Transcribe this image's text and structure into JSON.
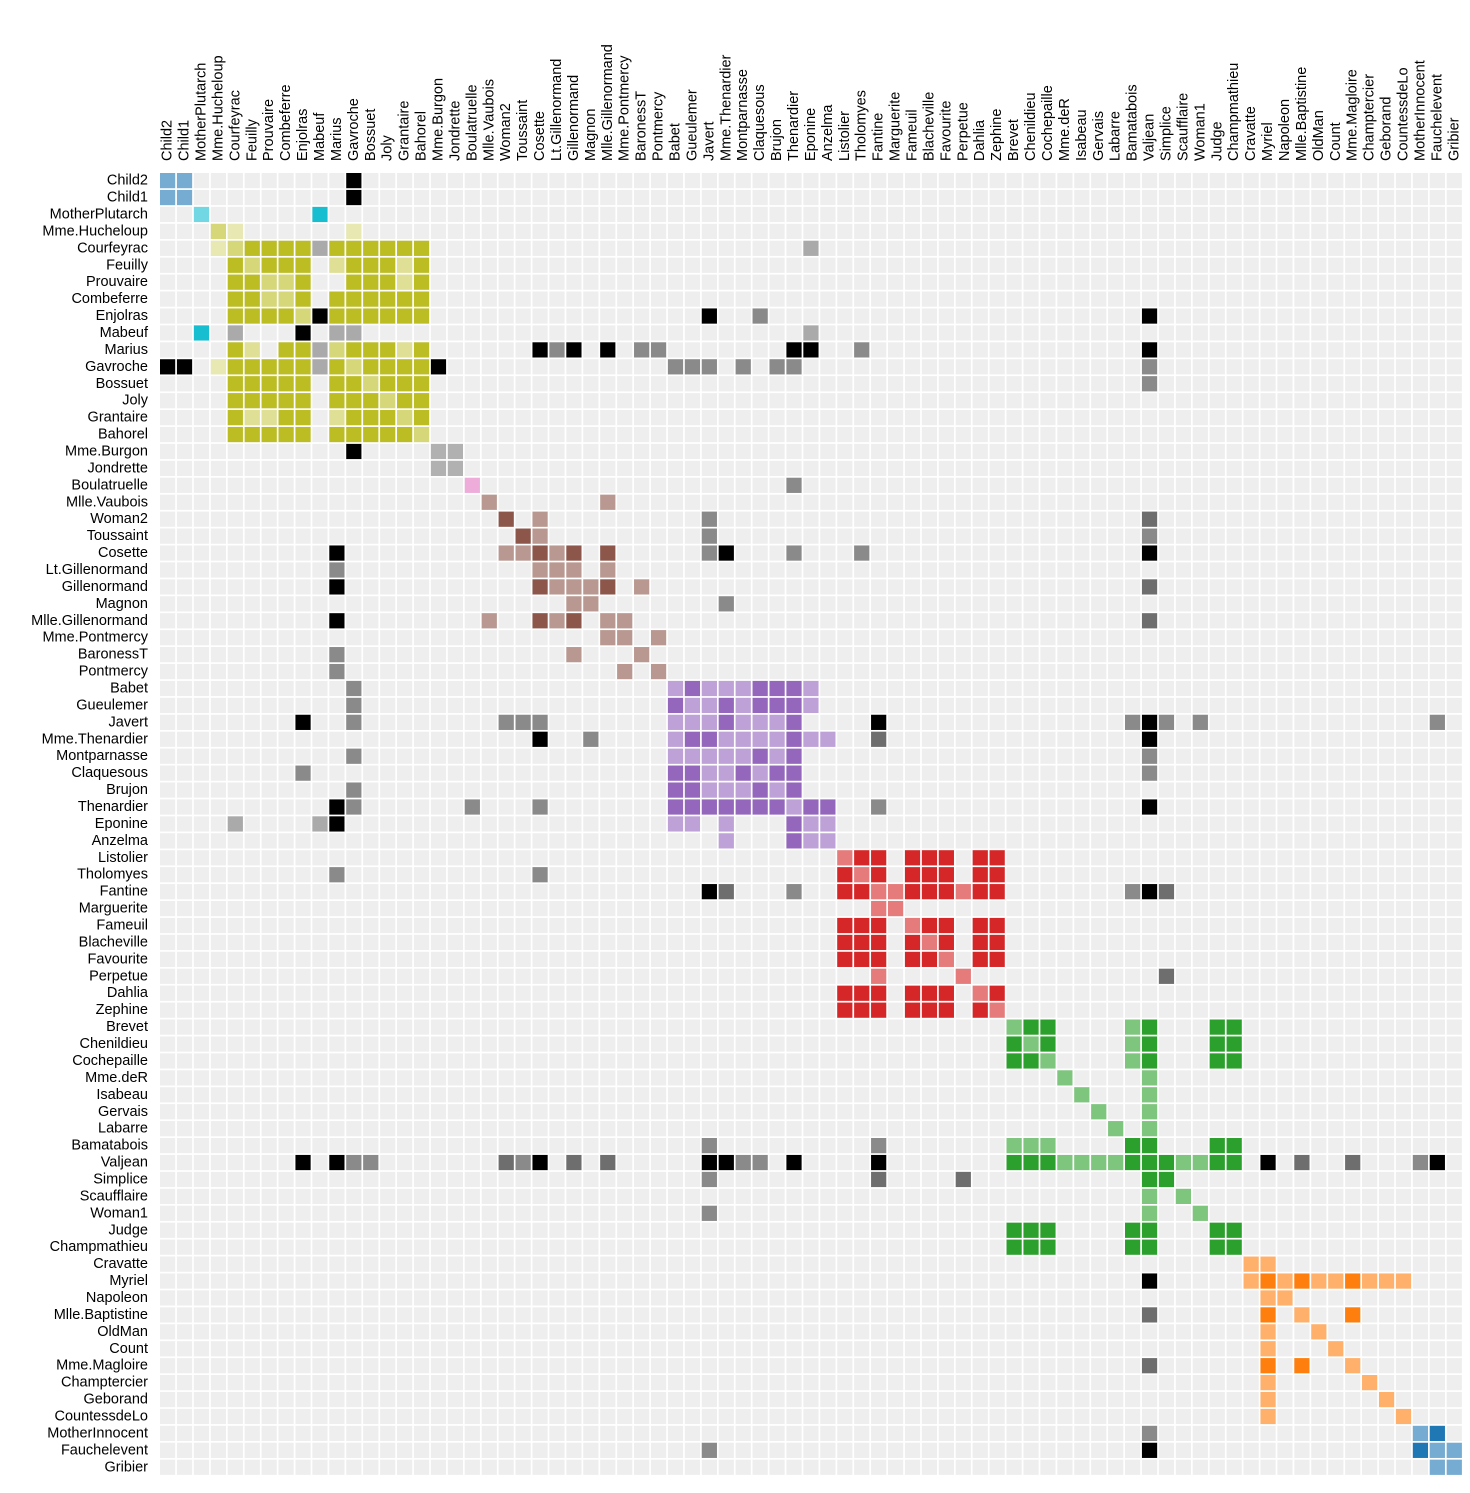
{
  "chart_data": {
    "type": "heatmap",
    "title": "",
    "xlabel": "",
    "ylabel": "",
    "labels": [
      "Child2",
      "Child1",
      "MotherPlutarch",
      "Mme.Hucheloup",
      "Courfeyrac",
      "Feuilly",
      "Prouvaire",
      "Combeferre",
      "Enjolras",
      "Mabeuf",
      "Marius",
      "Gavroche",
      "Bossuet",
      "Joly",
      "Grantaire",
      "Bahorel",
      "Mme.Burgon",
      "Jondrette",
      "Boulatruelle",
      "Mlle.Vaubois",
      "Woman2",
      "Toussaint",
      "Cosette",
      "Lt.Gillenormand",
      "Gillenormand",
      "Magnon",
      "Mlle.Gillenormand",
      "Mme.Pontmercy",
      "BaronessT",
      "Pontmercy",
      "Babet",
      "Gueulemer",
      "Javert",
      "Mme.Thenardier",
      "Montparnasse",
      "Claquesous",
      "Brujon",
      "Thenardier",
      "Eponine",
      "Anzelma",
      "Listolier",
      "Tholomyes",
      "Fantine",
      "Marguerite",
      "Fameuil",
      "Blacheville",
      "Favourite",
      "Perpetue",
      "Dahlia",
      "Zephine",
      "Brevet",
      "Chenildieu",
      "Cochepaille",
      "Mme.deR",
      "Isabeau",
      "Gervais",
      "Labarre",
      "Bamatabois",
      "Valjean",
      "Simplice",
      "Scaufflaire",
      "Woman1",
      "Judge",
      "Champmathieu",
      "Cravatte",
      "Myriel",
      "Napoleon",
      "Mlle.Baptistine",
      "OldMan",
      "Count",
      "Mme.Magloire",
      "Champtercier",
      "Geborand",
      "CountessdeLo",
      "MotherInnocent",
      "Fauchelevent",
      "Gribier"
    ],
    "groups": [
      0,
      0,
      1,
      2,
      2,
      2,
      2,
      2,
      2,
      1,
      2,
      2,
      2,
      2,
      2,
      2,
      3,
      3,
      4,
      5,
      5,
      5,
      5,
      5,
      5,
      5,
      5,
      5,
      5,
      5,
      6,
      6,
      6,
      6,
      6,
      6,
      6,
      6,
      6,
      6,
      7,
      7,
      7,
      7,
      7,
      7,
      7,
      7,
      7,
      7,
      8,
      8,
      8,
      8,
      8,
      8,
      8,
      8,
      8,
      8,
      8,
      8,
      8,
      8,
      9,
      9,
      9,
      9,
      9,
      9,
      9,
      9,
      9,
      9,
      0,
      0,
      0
    ],
    "group_colors": [
      "#1f77b4",
      "#17becf",
      "#bcbd22",
      "#7f7f7f",
      "#e377c2",
      "#8c564b",
      "#9467bd",
      "#d62728",
      "#2ca02c",
      "#ff7f0e"
    ],
    "cross_group_colors": [
      "#c7c7c7",
      "#aaaaaa",
      "#8a8a8a",
      "#6e6e6e",
      "#444444",
      "#000000"
    ],
    "cell_background": "#eeeeee",
    "links": [
      [
        0,
        1,
        3
      ],
      [
        0,
        0,
        3
      ],
      [
        0,
        11,
        6
      ],
      [
        1,
        1,
        3
      ],
      [
        1,
        11,
        6
      ],
      [
        2,
        2,
        3
      ],
      [
        2,
        9,
        9
      ],
      [
        3,
        3,
        3
      ],
      [
        3,
        4,
        1
      ],
      [
        3,
        11,
        1
      ],
      [
        4,
        4,
        3
      ],
      [
        4,
        5,
        6
      ],
      [
        4,
        6,
        6
      ],
      [
        4,
        7,
        6
      ],
      [
        4,
        8,
        6
      ],
      [
        4,
        10,
        6
      ],
      [
        4,
        11,
        6
      ],
      [
        4,
        12,
        6
      ],
      [
        4,
        13,
        6
      ],
      [
        4,
        14,
        6
      ],
      [
        4,
        15,
        6
      ],
      [
        4,
        9,
        2
      ],
      [
        4,
        38,
        2
      ],
      [
        5,
        5,
        3
      ],
      [
        5,
        6,
        6
      ],
      [
        5,
        7,
        6
      ],
      [
        5,
        8,
        6
      ],
      [
        5,
        10,
        2
      ],
      [
        5,
        11,
        6
      ],
      [
        5,
        12,
        6
      ],
      [
        5,
        13,
        6
      ],
      [
        5,
        14,
        2
      ],
      [
        5,
        15,
        6
      ],
      [
        6,
        6,
        3
      ],
      [
        6,
        7,
        3
      ],
      [
        6,
        8,
        6
      ],
      [
        6,
        11,
        6
      ],
      [
        6,
        12,
        6
      ],
      [
        6,
        13,
        6
      ],
      [
        6,
        14,
        2
      ],
      [
        6,
        15,
        6
      ],
      [
        7,
        7,
        3
      ],
      [
        7,
        8,
        6
      ],
      [
        7,
        10,
        6
      ],
      [
        7,
        11,
        6
      ],
      [
        7,
        12,
        6
      ],
      [
        7,
        13,
        6
      ],
      [
        7,
        14,
        6
      ],
      [
        7,
        15,
        6
      ],
      [
        8,
        8,
        3
      ],
      [
        8,
        9,
        6
      ],
      [
        8,
        10,
        6
      ],
      [
        8,
        11,
        6
      ],
      [
        8,
        12,
        6
      ],
      [
        8,
        13,
        6
      ],
      [
        8,
        14,
        6
      ],
      [
        8,
        15,
        6
      ],
      [
        8,
        32,
        9
      ],
      [
        8,
        35,
        3
      ],
      [
        8,
        58,
        9
      ],
      [
        9,
        10,
        2
      ],
      [
        9,
        11,
        2
      ],
      [
        9,
        38,
        2
      ],
      [
        10,
        10,
        3
      ],
      [
        10,
        11,
        6
      ],
      [
        10,
        12,
        6
      ],
      [
        10,
        13,
        6
      ],
      [
        10,
        14,
        2
      ],
      [
        10,
        15,
        6
      ],
      [
        10,
        22,
        9
      ],
      [
        10,
        23,
        3
      ],
      [
        10,
        24,
        9
      ],
      [
        10,
        26,
        9
      ],
      [
        10,
        28,
        3
      ],
      [
        10,
        29,
        3
      ],
      [
        10,
        37,
        6
      ],
      [
        10,
        38,
        9
      ],
      [
        10,
        41,
        3
      ],
      [
        10,
        58,
        9
      ],
      [
        11,
        11,
        3
      ],
      [
        11,
        12,
        6
      ],
      [
        11,
        13,
        6
      ],
      [
        11,
        14,
        6
      ],
      [
        11,
        15,
        6
      ],
      [
        11,
        16,
        6
      ],
      [
        11,
        30,
        3
      ],
      [
        11,
        31,
        3
      ],
      [
        11,
        32,
        3
      ],
      [
        11,
        34,
        3
      ],
      [
        11,
        36,
        3
      ],
      [
        11,
        37,
        3
      ],
      [
        11,
        58,
        3
      ],
      [
        12,
        12,
        3
      ],
      [
        12,
        13,
        6
      ],
      [
        12,
        14,
        6
      ],
      [
        12,
        15,
        6
      ],
      [
        12,
        58,
        3
      ],
      [
        13,
        13,
        3
      ],
      [
        13,
        14,
        6
      ],
      [
        13,
        15,
        6
      ],
      [
        14,
        14,
        3
      ],
      [
        14,
        15,
        6
      ],
      [
        15,
        15,
        3
      ],
      [
        16,
        16,
        3
      ],
      [
        16,
        17,
        3
      ],
      [
        17,
        17,
        3
      ],
      [
        18,
        18,
        3
      ],
      [
        18,
        37,
        3
      ],
      [
        19,
        19,
        3
      ],
      [
        19,
        26,
        3
      ],
      [
        20,
        20,
        6
      ],
      [
        20,
        22,
        3
      ],
      [
        20,
        32,
        3
      ],
      [
        20,
        58,
        4
      ],
      [
        21,
        21,
        6
      ],
      [
        21,
        22,
        3
      ],
      [
        21,
        32,
        3
      ],
      [
        21,
        58,
        3
      ],
      [
        22,
        22,
        6
      ],
      [
        22,
        23,
        3
      ],
      [
        22,
        24,
        6
      ],
      [
        22,
        26,
        6
      ],
      [
        22,
        32,
        3
      ],
      [
        22,
        33,
        9
      ],
      [
        22,
        37,
        3
      ],
      [
        22,
        41,
        3
      ],
      [
        22,
        58,
        9
      ],
      [
        23,
        23,
        3
      ],
      [
        23,
        24,
        3
      ],
      [
        23,
        26,
        3
      ],
      [
        24,
        24,
        3
      ],
      [
        24,
        25,
        3
      ],
      [
        24,
        26,
        6
      ],
      [
        24,
        28,
        3
      ],
      [
        24,
        58,
        4
      ],
      [
        25,
        25,
        3
      ],
      [
        25,
        33,
        3
      ],
      [
        26,
        26,
        3
      ],
      [
        26,
        27,
        3
      ],
      [
        26,
        58,
        4
      ],
      [
        27,
        27,
        3
      ],
      [
        27,
        29,
        3
      ],
      [
        28,
        28,
        3
      ],
      [
        29,
        29,
        3
      ],
      [
        30,
        30,
        3
      ],
      [
        30,
        31,
        6
      ],
      [
        30,
        32,
        3
      ],
      [
        30,
        33,
        3
      ],
      [
        30,
        34,
        3
      ],
      [
        30,
        35,
        6
      ],
      [
        30,
        36,
        6
      ],
      [
        30,
        37,
        6
      ],
      [
        30,
        38,
        3
      ],
      [
        31,
        31,
        3
      ],
      [
        31,
        32,
        3
      ],
      [
        31,
        33,
        6
      ],
      [
        31,
        34,
        3
      ],
      [
        31,
        35,
        6
      ],
      [
        31,
        36,
        6
      ],
      [
        31,
        37,
        6
      ],
      [
        31,
        38,
        3
      ],
      [
        32,
        32,
        3
      ],
      [
        32,
        33,
        6
      ],
      [
        32,
        34,
        3
      ],
      [
        32,
        35,
        3
      ],
      [
        32,
        36,
        3
      ],
      [
        32,
        37,
        6
      ],
      [
        32,
        42,
        9
      ],
      [
        32,
        57,
        3
      ],
      [
        32,
        58,
        9
      ],
      [
        32,
        59,
        3
      ],
      [
        32,
        61,
        3
      ],
      [
        32,
        75,
        3
      ],
      [
        33,
        33,
        3
      ],
      [
        33,
        34,
        3
      ],
      [
        33,
        35,
        3
      ],
      [
        33,
        36,
        3
      ],
      [
        33,
        37,
        6
      ],
      [
        33,
        38,
        3
      ],
      [
        33,
        39,
        3
      ],
      [
        33,
        42,
        4
      ],
      [
        33,
        58,
        9
      ],
      [
        34,
        34,
        3
      ],
      [
        34,
        35,
        6
      ],
      [
        34,
        36,
        3
      ],
      [
        34,
        37,
        6
      ],
      [
        34,
        58,
        3
      ],
      [
        35,
        35,
        3
      ],
      [
        35,
        36,
        6
      ],
      [
        35,
        37,
        6
      ],
      [
        35,
        58,
        3
      ],
      [
        36,
        36,
        3
      ],
      [
        36,
        37,
        6
      ],
      [
        37,
        37,
        3
      ],
      [
        37,
        38,
        6
      ],
      [
        37,
        39,
        6
      ],
      [
        37,
        42,
        3
      ],
      [
        37,
        58,
        9
      ],
      [
        38,
        38,
        3
      ],
      [
        38,
        39,
        3
      ],
      [
        39,
        39,
        3
      ],
      [
        40,
        40,
        3
      ],
      [
        40,
        41,
        6
      ],
      [
        40,
        42,
        6
      ],
      [
        40,
        44,
        6
      ],
      [
        40,
        45,
        6
      ],
      [
        40,
        46,
        6
      ],
      [
        40,
        48,
        6
      ],
      [
        40,
        49,
        6
      ],
      [
        41,
        41,
        3
      ],
      [
        41,
        42,
        6
      ],
      [
        41,
        44,
        6
      ],
      [
        41,
        45,
        6
      ],
      [
        41,
        46,
        6
      ],
      [
        41,
        48,
        6
      ],
      [
        41,
        49,
        6
      ],
      [
        42,
        42,
        3
      ],
      [
        42,
        43,
        3
      ],
      [
        42,
        44,
        6
      ],
      [
        42,
        45,
        6
      ],
      [
        42,
        46,
        6
      ],
      [
        42,
        47,
        3
      ],
      [
        42,
        48,
        6
      ],
      [
        42,
        49,
        6
      ],
      [
        42,
        57,
        3
      ],
      [
        42,
        58,
        9
      ],
      [
        42,
        59,
        4
      ],
      [
        43,
        43,
        3
      ],
      [
        44,
        44,
        3
      ],
      [
        44,
        45,
        6
      ],
      [
        44,
        46,
        6
      ],
      [
        44,
        48,
        6
      ],
      [
        44,
        49,
        6
      ],
      [
        45,
        45,
        3
      ],
      [
        45,
        46,
        6
      ],
      [
        45,
        48,
        6
      ],
      [
        45,
        49,
        6
      ],
      [
        46,
        46,
        3
      ],
      [
        46,
        48,
        6
      ],
      [
        46,
        49,
        6
      ],
      [
        47,
        47,
        3
      ],
      [
        47,
        59,
        4
      ],
      [
        48,
        48,
        3
      ],
      [
        48,
        49,
        6
      ],
      [
        49,
        49,
        3
      ],
      [
        50,
        50,
        3
      ],
      [
        50,
        51,
        6
      ],
      [
        50,
        52,
        6
      ],
      [
        50,
        57,
        3
      ],
      [
        50,
        58,
        6
      ],
      [
        50,
        62,
        6
      ],
      [
        50,
        63,
        6
      ],
      [
        51,
        51,
        3
      ],
      [
        51,
        52,
        6
      ],
      [
        51,
        57,
        3
      ],
      [
        51,
        58,
        6
      ],
      [
        51,
        62,
        6
      ],
      [
        51,
        63,
        6
      ],
      [
        52,
        52,
        3
      ],
      [
        52,
        57,
        3
      ],
      [
        52,
        58,
        6
      ],
      [
        52,
        62,
        6
      ],
      [
        52,
        63,
        6
      ],
      [
        53,
        53,
        3
      ],
      [
        53,
        58,
        3
      ],
      [
        54,
        54,
        3
      ],
      [
        54,
        58,
        3
      ],
      [
        55,
        55,
        3
      ],
      [
        55,
        58,
        3
      ],
      [
        56,
        56,
        3
      ],
      [
        56,
        58,
        3
      ],
      [
        57,
        57,
        6
      ],
      [
        57,
        58,
        6
      ],
      [
        57,
        62,
        6
      ],
      [
        57,
        63,
        6
      ],
      [
        58,
        58,
        6
      ],
      [
        58,
        59,
        6
      ],
      [
        58,
        60,
        3
      ],
      [
        58,
        61,
        3
      ],
      [
        58,
        62,
        6
      ],
      [
        58,
        63,
        6
      ],
      [
        58,
        65,
        9
      ],
      [
        58,
        67,
        4
      ],
      [
        58,
        70,
        4
      ],
      [
        58,
        74,
        3
      ],
      [
        58,
        75,
        9
      ],
      [
        59,
        59,
        6
      ],
      [
        60,
        60,
        3
      ],
      [
        61,
        61,
        3
      ],
      [
        62,
        62,
        6
      ],
      [
        62,
        63,
        6
      ],
      [
        63,
        63,
        6
      ],
      [
        64,
        64,
        3
      ],
      [
        64,
        65,
        3
      ],
      [
        65,
        65,
        6
      ],
      [
        65,
        66,
        3
      ],
      [
        65,
        67,
        6
      ],
      [
        65,
        68,
        3
      ],
      [
        65,
        69,
        3
      ],
      [
        65,
        70,
        6
      ],
      [
        65,
        71,
        3
      ],
      [
        65,
        72,
        3
      ],
      [
        65,
        73,
        3
      ],
      [
        66,
        66,
        3
      ],
      [
        67,
        67,
        3
      ],
      [
        67,
        70,
        6
      ],
      [
        68,
        68,
        3
      ],
      [
        69,
        69,
        3
      ],
      [
        70,
        70,
        3
      ],
      [
        71,
        71,
        3
      ],
      [
        72,
        72,
        3
      ],
      [
        73,
        73,
        3
      ],
      [
        74,
        74,
        3
      ],
      [
        74,
        75,
        6
      ],
      [
        75,
        75,
        3
      ],
      [
        75,
        76,
        3
      ],
      [
        76,
        76,
        3
      ]
    ]
  }
}
